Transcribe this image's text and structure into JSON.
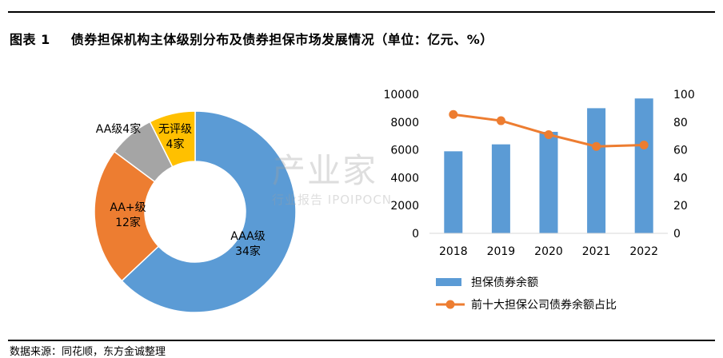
{
  "header": {
    "figure_no": "图表 1",
    "title": "债券担保机构主体级别分布及债券担保市场发展情况（单位：亿元、%）"
  },
  "source": "数据来源：同花顺，东方金诚整理",
  "watermark": {
    "main": "产业家",
    "sub": "行业报告 IPOIPOCN"
  },
  "chart_data": [
    {
      "type": "pie",
      "variant": "donut",
      "slices": [
        {
          "label_line1": "AAA级",
          "label_line2": "34家",
          "value": 34,
          "color": "#5b9bd5"
        },
        {
          "label_line1": "AA+级",
          "label_line2": "12家",
          "value": 12,
          "color": "#ed7d31"
        },
        {
          "label_line1": "AA级4家",
          "label_line2": "",
          "value": 4,
          "color": "#a5a5a5"
        },
        {
          "label_line1": "无评级",
          "label_line2": "4家",
          "value": 4,
          "color": "#ffc000"
        }
      ]
    },
    {
      "type": "bar+line",
      "categories": [
        "2018",
        "2019",
        "2020",
        "2021",
        "2022"
      ],
      "series": [
        {
          "name": "担保债券余额",
          "type": "bar",
          "axis": "left",
          "values": [
            5900,
            6400,
            7300,
            9000,
            9700
          ],
          "color": "#5b9bd5"
        },
        {
          "name": "前十大担保公司债券余额占比",
          "type": "line",
          "axis": "right",
          "values": [
            85.5,
            81,
            71,
            62.5,
            63.5
          ],
          "color": "#ed7d31"
        }
      ],
      "y_left": {
        "lim": [
          0,
          10000
        ],
        "ticks": [
          "0",
          "2000",
          "4000",
          "6000",
          "8000",
          "10000"
        ]
      },
      "y_right": {
        "lim": [
          0,
          100
        ],
        "ticks": [
          "0",
          "20",
          "40",
          "60",
          "80",
          "100"
        ]
      },
      "grid": false,
      "legend": "bottom"
    }
  ]
}
